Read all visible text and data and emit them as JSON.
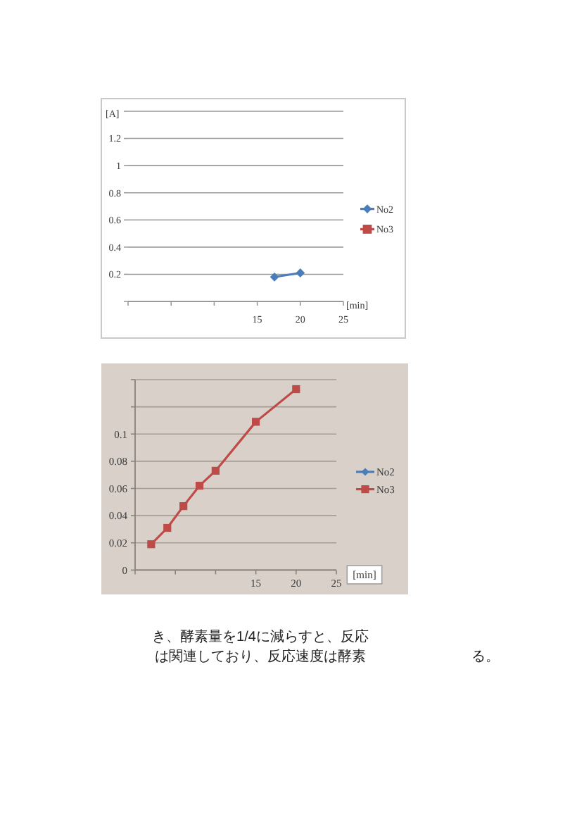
{
  "chart_data": [
    {
      "type": "line",
      "ylabel": "[A]",
      "xlabel": "[min]",
      "xlim": [
        0,
        25
      ],
      "xticks": [
        {
          "value": 0,
          "label": null
        },
        {
          "value": 5,
          "label": null
        },
        {
          "value": 10,
          "label": null
        },
        15,
        20,
        25
      ],
      "ylim": [
        0,
        1.4
      ],
      "yticks": [
        {
          "value": 0,
          "label": null
        },
        0.2,
        0.4,
        0.6,
        0.8,
        1,
        1.2,
        {
          "value": 1.4,
          "label": null
        }
      ],
      "grid": "y",
      "legend": "right",
      "series": [
        {
          "name": "No2",
          "color": "#4a7ebb",
          "marker": "diamond",
          "x": [
            17,
            20
          ],
          "values": [
            0.18,
            0.21
          ]
        },
        {
          "name": "No3",
          "color": "#be4b48",
          "marker": "square"
        }
      ]
    },
    {
      "type": "line",
      "xlabel": "[min]",
      "xlim": [
        0,
        25
      ],
      "xticks": [
        {
          "value": 0,
          "label": null
        },
        {
          "value": 5,
          "label": null
        },
        {
          "value": 10,
          "label": null
        },
        15,
        20,
        25
      ],
      "ylim": [
        0,
        0.14
      ],
      "yticks": [
        0,
        0.02,
        0.04,
        0.06,
        0.08,
        0.1,
        {
          "value": 0.12,
          "label": null
        },
        {
          "value": 0.14,
          "label": null
        }
      ],
      "grid": "y",
      "legend": "right",
      "series": [
        {
          "name": "No2",
          "color": "#4a7ebb",
          "marker": "diamond"
        },
        {
          "name": "No3",
          "color": "#be4b48",
          "marker": "square",
          "x": [
            2,
            4,
            6,
            8,
            10,
            15,
            20
          ],
          "values": [
            0.019,
            0.031,
            0.047,
            0.062,
            0.073,
            0.109,
            0.133
          ]
        }
      ],
      "annotations": [
        "き、酵素量を1/4に減らすと、反応",
        "は関連しており、反応速度は酵素",
        "る。"
      ]
    }
  ]
}
